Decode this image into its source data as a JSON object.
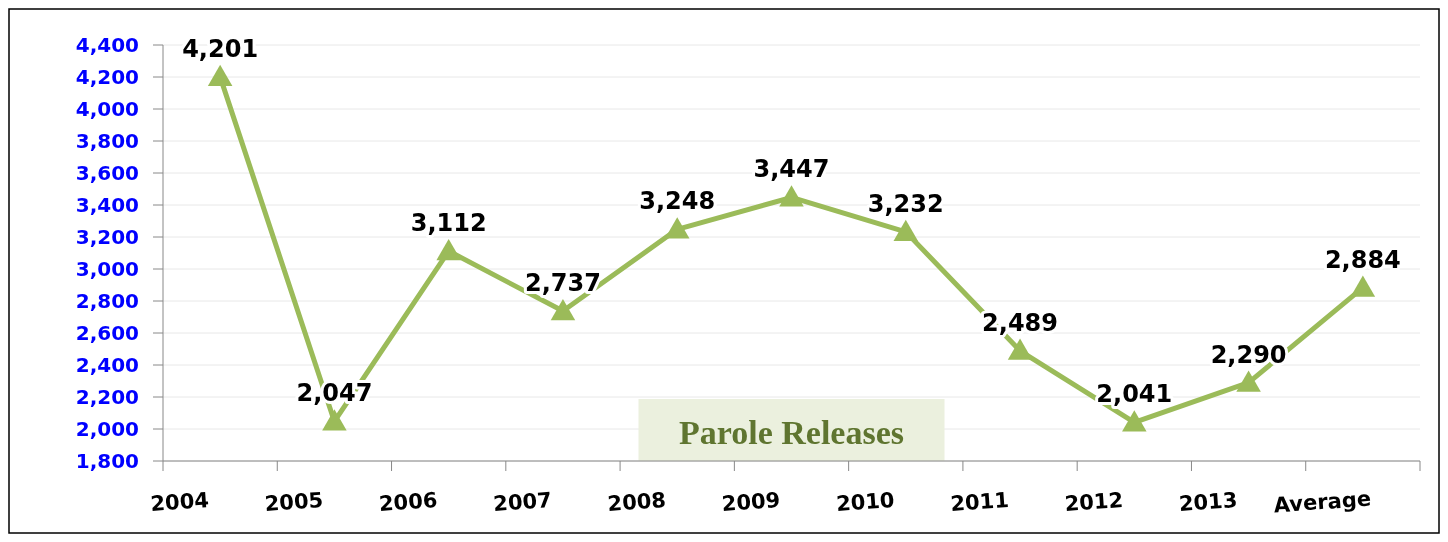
{
  "chart_data": {
    "type": "line",
    "title": "Parole Releases",
    "categories": [
      "2004",
      "2005",
      "2006",
      "2007",
      "2008",
      "2009",
      "2010",
      "2011",
      "2012",
      "2013",
      "Average"
    ],
    "series": [
      {
        "color": "#9bbb59",
        "values": [
          4201,
          2047,
          3112,
          2737,
          3248,
          3447,
          3232,
          2489,
          2041,
          2290,
          2884
        ],
        "value_labels": [
          "4,201",
          "2,047",
          "3,112",
          "2,737",
          "3,248",
          "3,447",
          "3,232",
          "2,489",
          "2,041",
          "2,290",
          "2,884"
        ]
      }
    ],
    "ylim": [
      1800,
      4400
    ],
    "yticks": [
      {
        "value": 1800,
        "label": "1,800"
      },
      {
        "value": 2000,
        "label": "2,000"
      },
      {
        "value": 2200,
        "label": "2,200"
      },
      {
        "value": 2400,
        "label": "2,400"
      },
      {
        "value": 2600,
        "label": "2,600"
      },
      {
        "value": 2800,
        "label": "2,800"
      },
      {
        "value": 3000,
        "label": "3,000"
      },
      {
        "value": 3200,
        "label": "3,200"
      },
      {
        "value": 3400,
        "label": "3,400"
      },
      {
        "value": 3600,
        "label": "3,600"
      },
      {
        "value": 3800,
        "label": "3,800"
      },
      {
        "value": 4000,
        "label": "4,000"
      },
      {
        "value": 4200,
        "label": "4,200"
      },
      {
        "value": 4400,
        "label": "4,400"
      }
    ],
    "grid": "y",
    "marker": "triangle",
    "line_style": "solid"
  }
}
